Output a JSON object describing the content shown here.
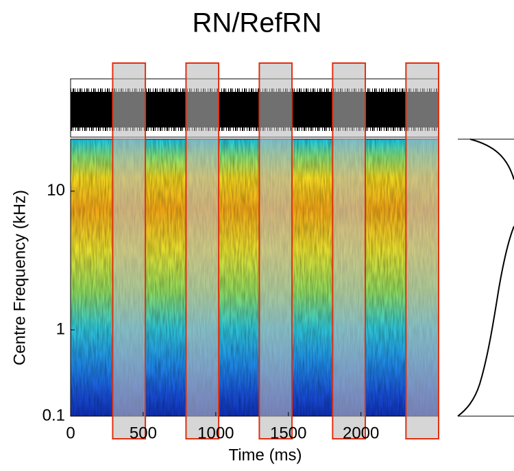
{
  "chart_data": {
    "type": "spectrogram",
    "title": "RN/RefRN",
    "xlabel": "Time (ms)",
    "ylabel": "Centre Frequency (kHz)",
    "xlim": [
      0,
      2535
    ],
    "xticks": [
      0,
      500,
      1000,
      1500,
      2000
    ],
    "ylim": [
      0.1,
      22.4
    ],
    "yticks": [
      0.1,
      1,
      10
    ],
    "yscale": "erb",
    "highlights": [
      {
        "start": 290,
        "end": 515
      },
      {
        "start": 795,
        "end": 1020
      },
      {
        "start": 1300,
        "end": 1525
      },
      {
        "start": 1805,
        "end": 2030
      },
      {
        "start": 2310,
        "end": 2535
      }
    ],
    "highlight_color": "#e03010"
  }
}
